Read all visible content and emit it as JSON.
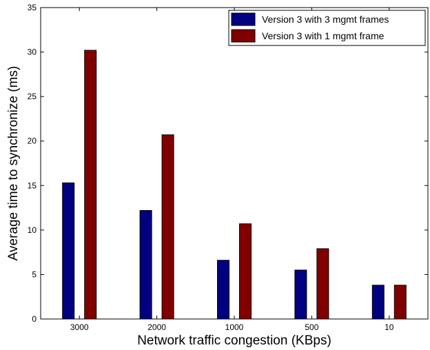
{
  "chart_data": {
    "type": "bar",
    "categories": [
      "3000",
      "2000",
      "1000",
      "500",
      "10"
    ],
    "series": [
      {
        "name": "Version 3 with 3 mgmt frames",
        "values": [
          15.3,
          12.2,
          6.6,
          5.5,
          3.8
        ],
        "color": "#000080"
      },
      {
        "name": "Version 3 with 1 mgmt frame",
        "values": [
          30.2,
          20.7,
          10.7,
          7.9,
          3.8
        ],
        "color": "#800000"
      }
    ],
    "xlabel": "Network traffic congestion (KBps)",
    "ylabel": "Average time to synchronize (ms)",
    "ylim": [
      0,
      35
    ],
    "yticks": [
      "0",
      "5",
      "10",
      "15",
      "20",
      "25",
      "30",
      "35"
    ],
    "grid": false,
    "legend_position": "top-right"
  }
}
